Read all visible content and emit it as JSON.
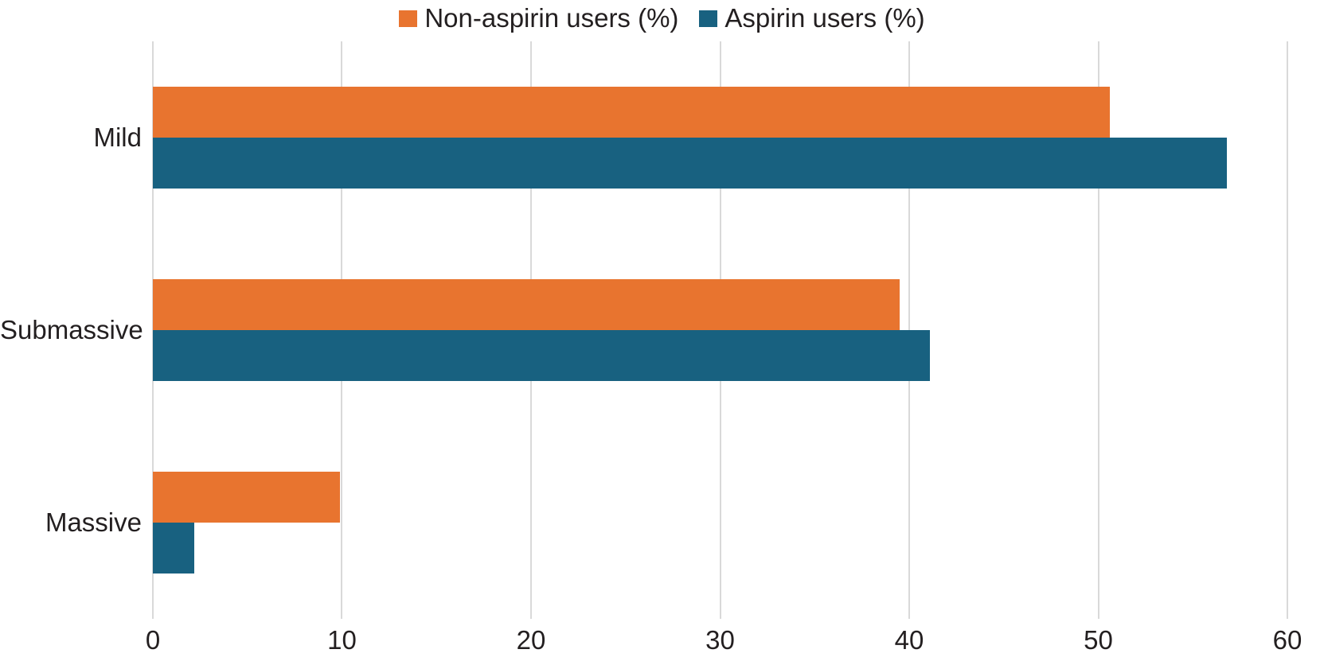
{
  "chart_data": {
    "type": "bar",
    "orientation": "horizontal",
    "title": "",
    "xlabel": "",
    "ylabel": "",
    "categories": [
      "Mild",
      "Submassive",
      "Massive"
    ],
    "series": [
      {
        "name": "Non-aspirin users (%)",
        "color": "#e8742f",
        "values": [
          50.6,
          39.5,
          9.9
        ]
      },
      {
        "name": "Aspirin users (%)",
        "color": "#186180",
        "values": [
          56.8,
          41.1,
          2.2
        ]
      }
    ],
    "xlim": [
      0,
      60
    ],
    "xticks": [
      0,
      10,
      20,
      30,
      40,
      50,
      60
    ],
    "grid": "vertical-only",
    "gridline_color": "#d9d9d9",
    "text_color": "#231f20",
    "background_color": "#ffffff",
    "legend_position": "top-center"
  }
}
